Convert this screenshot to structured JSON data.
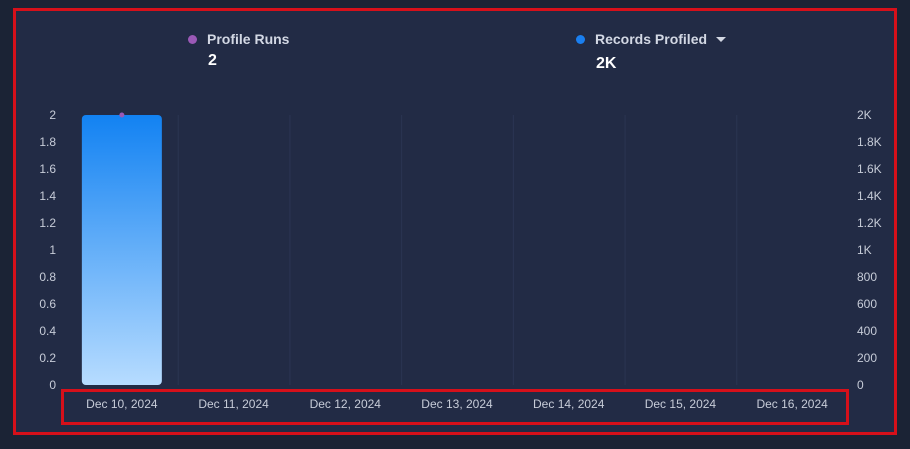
{
  "legend": {
    "profile_runs": {
      "label": "Profile Runs",
      "value": "2",
      "color": "#9b59b6"
    },
    "records_profiled": {
      "label": "Records Profiled",
      "value": "2K",
      "color": "#1a7ff0",
      "has_dropdown": true
    }
  },
  "chart_data": {
    "type": "bar",
    "categories": [
      "Dec 10, 2024",
      "Dec 11, 2024",
      "Dec 12, 2024",
      "Dec 13, 2024",
      "Dec 14, 2024",
      "Dec 15, 2024",
      "Dec 16, 2024"
    ],
    "series": [
      {
        "name": "Records Profiled",
        "type": "bar",
        "axis": "right",
        "values": [
          2000,
          0,
          0,
          0,
          0,
          0,
          0
        ],
        "color": "#1a7ff0"
      },
      {
        "name": "Profile Runs",
        "type": "line",
        "axis": "left",
        "values": [
          2,
          0,
          0,
          0,
          0,
          0,
          0
        ],
        "color": "#9b59b6"
      }
    ],
    "y_left": {
      "ticks": [
        "0",
        "0.2",
        "0.4",
        "0.6",
        "0.8",
        "1",
        "1.2",
        "1.4",
        "1.6",
        "1.8",
        "2"
      ],
      "ylim": [
        0,
        2
      ]
    },
    "y_right": {
      "ticks": [
        "0",
        "200",
        "400",
        "600",
        "800",
        "1K",
        "1.2K",
        "1.4K",
        "1.6K",
        "1.8K",
        "2K"
      ],
      "ylim": [
        0,
        2000
      ]
    },
    "grid": true
  }
}
